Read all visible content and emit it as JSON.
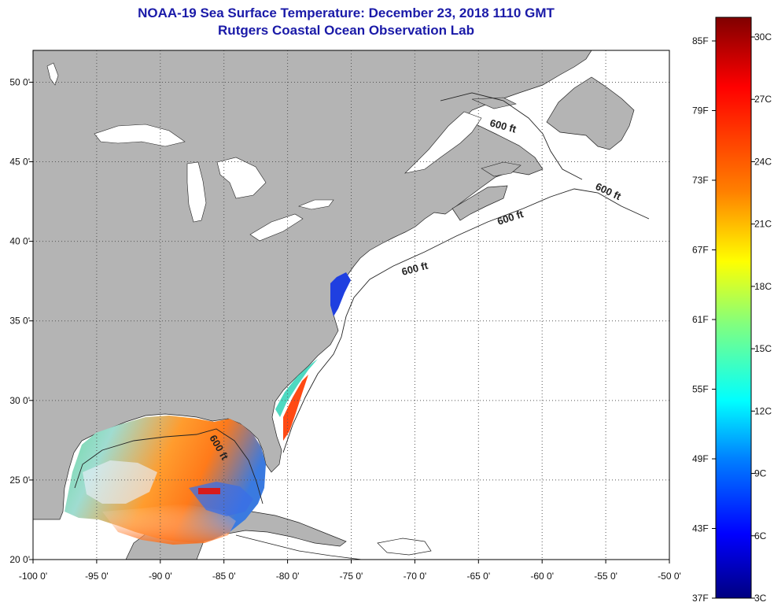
{
  "header": {
    "title": "NOAA-19 Sea Surface Temperature:  December 23, 2018 1110 GMT",
    "subtitle": "Rutgers Coastal Ocean Observation Lab"
  },
  "map": {
    "lon_range": [
      -100,
      -50
    ],
    "lat_range": [
      20,
      52
    ],
    "lon_ticks": [
      "-100 0'",
      "-95 0'",
      "-90 0'",
      "-85 0'",
      "-80 0'",
      "-75 0'",
      "-70 0'",
      "-65 0'",
      "-60 0'",
      "-55 0'",
      "-50 0'"
    ],
    "lat_ticks": [
      "20 0'",
      "25 0'",
      "30 0'",
      "35 0'",
      "40 0'",
      "45 0'",
      "50 0'"
    ],
    "land_color": "#b4b4b4",
    "ocean_color": "#ffffff",
    "contour_labels": [
      "600 ft",
      "600 ft",
      "600 ft",
      "600 ft",
      "600 ft"
    ]
  },
  "colorbar": {
    "f_labels": [
      "85F",
      "79F",
      "73F",
      "67F",
      "61F",
      "55F",
      "49F",
      "43F",
      "37F"
    ],
    "c_labels": [
      "30C",
      "27C",
      "24C",
      "21C",
      "18C",
      "15C",
      "12C",
      "9C",
      "6C",
      "3C"
    ],
    "colors": [
      "#800000",
      "#ff0000",
      "#ff8000",
      "#ffff00",
      "#80ff80",
      "#00ffff",
      "#0080ff",
      "#0000ff",
      "#000080"
    ]
  }
}
